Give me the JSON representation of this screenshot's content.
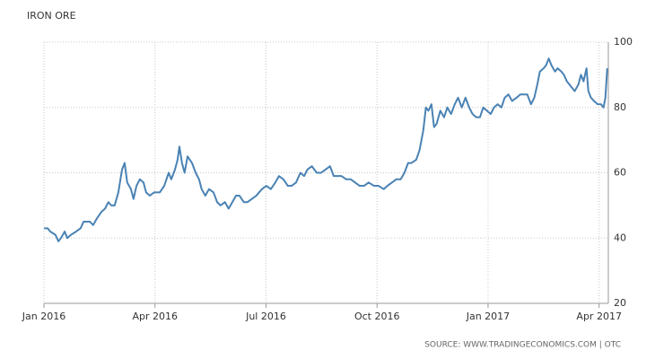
{
  "chart_data": {
    "type": "line",
    "title": "IRON ORE",
    "source": "SOURCE: WWW.TRADINGECONOMICS.COM | OTC",
    "color": "#4a82b4",
    "grid": true,
    "y_axis_side": "right",
    "xlim": [
      0,
      15.25
    ],
    "xticks": [
      {
        "value": 0,
        "label": "Jan 2016"
      },
      {
        "value": 3,
        "label": "Apr 2016"
      },
      {
        "value": 6,
        "label": "Jul 2016"
      },
      {
        "value": 9,
        "label": "Oct 2016"
      },
      {
        "value": 12,
        "label": "Jan 2017"
      },
      {
        "value": 15,
        "label": "Apr 2017"
      }
    ],
    "ylim": [
      20,
      100
    ],
    "yticks": [
      20,
      40,
      60,
      80,
      100
    ],
    "x": [
      0,
      0.1,
      0.17,
      0.31,
      0.39,
      0.46,
      0.56,
      0.63,
      0.73,
      0.87,
      0.99,
      1.07,
      1.24,
      1.33,
      1.43,
      1.55,
      1.65,
      1.74,
      1.82,
      1.91,
      2.01,
      2.11,
      2.18,
      2.25,
      2.35,
      2.42,
      2.5,
      2.59,
      2.69,
      2.76,
      2.86,
      2.98,
      3.13,
      3.25,
      3.37,
      3.44,
      3.54,
      3.61,
      3.66,
      3.73,
      3.8,
      3.88,
      4.0,
      4.1,
      4.19,
      4.26,
      4.36,
      4.46,
      4.58,
      4.68,
      4.77,
      4.89,
      4.99,
      5.09,
      5.19,
      5.28,
      5.4,
      5.5,
      5.62,
      5.74,
      5.89,
      6.01,
      6.13,
      6.25,
      6.35,
      6.47,
      6.59,
      6.69,
      6.81,
      6.93,
      7.03,
      7.12,
      7.24,
      7.37,
      7.49,
      7.61,
      7.73,
      7.83,
      7.92,
      8.04,
      8.17,
      8.29,
      8.41,
      8.53,
      8.65,
      8.77,
      8.92,
      9.04,
      9.18,
      9.28,
      9.4,
      9.52,
      9.64,
      9.74,
      9.84,
      9.93,
      10.06,
      10.15,
      10.25,
      10.32,
      10.39,
      10.47,
      10.54,
      10.61,
      10.71,
      10.81,
      10.9,
      11.0,
      11.1,
      11.19,
      11.29,
      11.39,
      11.49,
      11.58,
      11.68,
      11.78,
      11.87,
      11.97,
      12.07,
      12.16,
      12.26,
      12.36,
      12.45,
      12.55,
      12.65,
      12.77,
      12.87,
      12.96,
      13.06,
      13.16,
      13.25,
      13.33,
      13.4,
      13.5,
      13.57,
      13.64,
      13.71,
      13.81,
      13.88,
      13.98,
      14.05,
      14.13,
      14.2,
      14.27,
      14.34,
      14.44,
      14.51,
      14.58,
      14.66,
      14.71,
      14.78,
      14.86,
      14.96,
      15.05,
      15.12,
      15.17,
      15.22
    ],
    "values": [
      43,
      43,
      42,
      41,
      39,
      40,
      42,
      40,
      41,
      42,
      43,
      45,
      45,
      44,
      46,
      48,
      49,
      51,
      50,
      50,
      54,
      61,
      63,
      57,
      55,
      52,
      56,
      58,
      57,
      54,
      53,
      54,
      54,
      56,
      60,
      58,
      61,
      64,
      68,
      63,
      60,
      65,
      63,
      60,
      58,
      55,
      53,
      55,
      54,
      51,
      50,
      51,
      49,
      51,
      53,
      53,
      51,
      51,
      52,
      53,
      55,
      56,
      55,
      57,
      59,
      58,
      56,
      56,
      57,
      60,
      59,
      61,
      62,
      60,
      60,
      61,
      62,
      59,
      59,
      59,
      58,
      58,
      57,
      56,
      56,
      57,
      56,
      56,
      55,
      56,
      57,
      58,
      58,
      60,
      63,
      63,
      64,
      67,
      73,
      80,
      79,
      81,
      74,
      75,
      79,
      77,
      80,
      78,
      81,
      83,
      80,
      83,
      80,
      78,
      77,
      77,
      80,
      79,
      78,
      80,
      81,
      80,
      83,
      84,
      82,
      83,
      84,
      84,
      84,
      81,
      83,
      87,
      91,
      92,
      93,
      95,
      93,
      91,
      92,
      91,
      90,
      88,
      87,
      86,
      85,
      87,
      90,
      88,
      92,
      85,
      83,
      82,
      81,
      81,
      80,
      83,
      92
    ]
  }
}
